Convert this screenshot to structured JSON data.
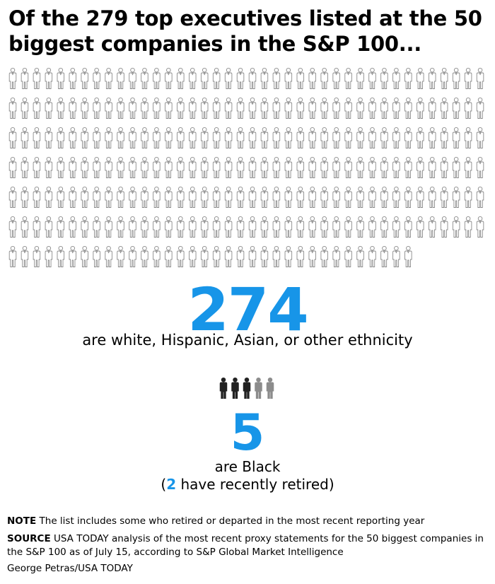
{
  "title": "Of the 279 top executives listed at the 50 biggest companies in the S&P 100...",
  "chart_data": {
    "type": "pictogram",
    "total": 279,
    "groups": [
      {
        "value": 274,
        "label": "are white, Hispanic, Asian, or other ethnicity",
        "color": "#ffffff"
      },
      {
        "value": 5,
        "label": "are Black",
        "sub_note": {
          "open": "(",
          "count": "2",
          "rest": " have recently retired)"
        },
        "color": "#222222"
      }
    ],
    "black_detail": {
      "active": 3,
      "retired": 2,
      "active_color": "#222222",
      "retired_color": "#8c8c8c"
    }
  },
  "accent_color": "#1795e8",
  "footer": {
    "note_label": "NOTE",
    "note_text": " The list includes some who retired or departed in the most recent reporting year",
    "source_label": "SOURCE",
    "source_text": " USA TODAY analysis of the most recent proxy statements for the 50 biggest companies in the S&P 100 as of July 15, according to S&P Global Market Intelligence",
    "credit": "George Petras/USA TODAY"
  }
}
